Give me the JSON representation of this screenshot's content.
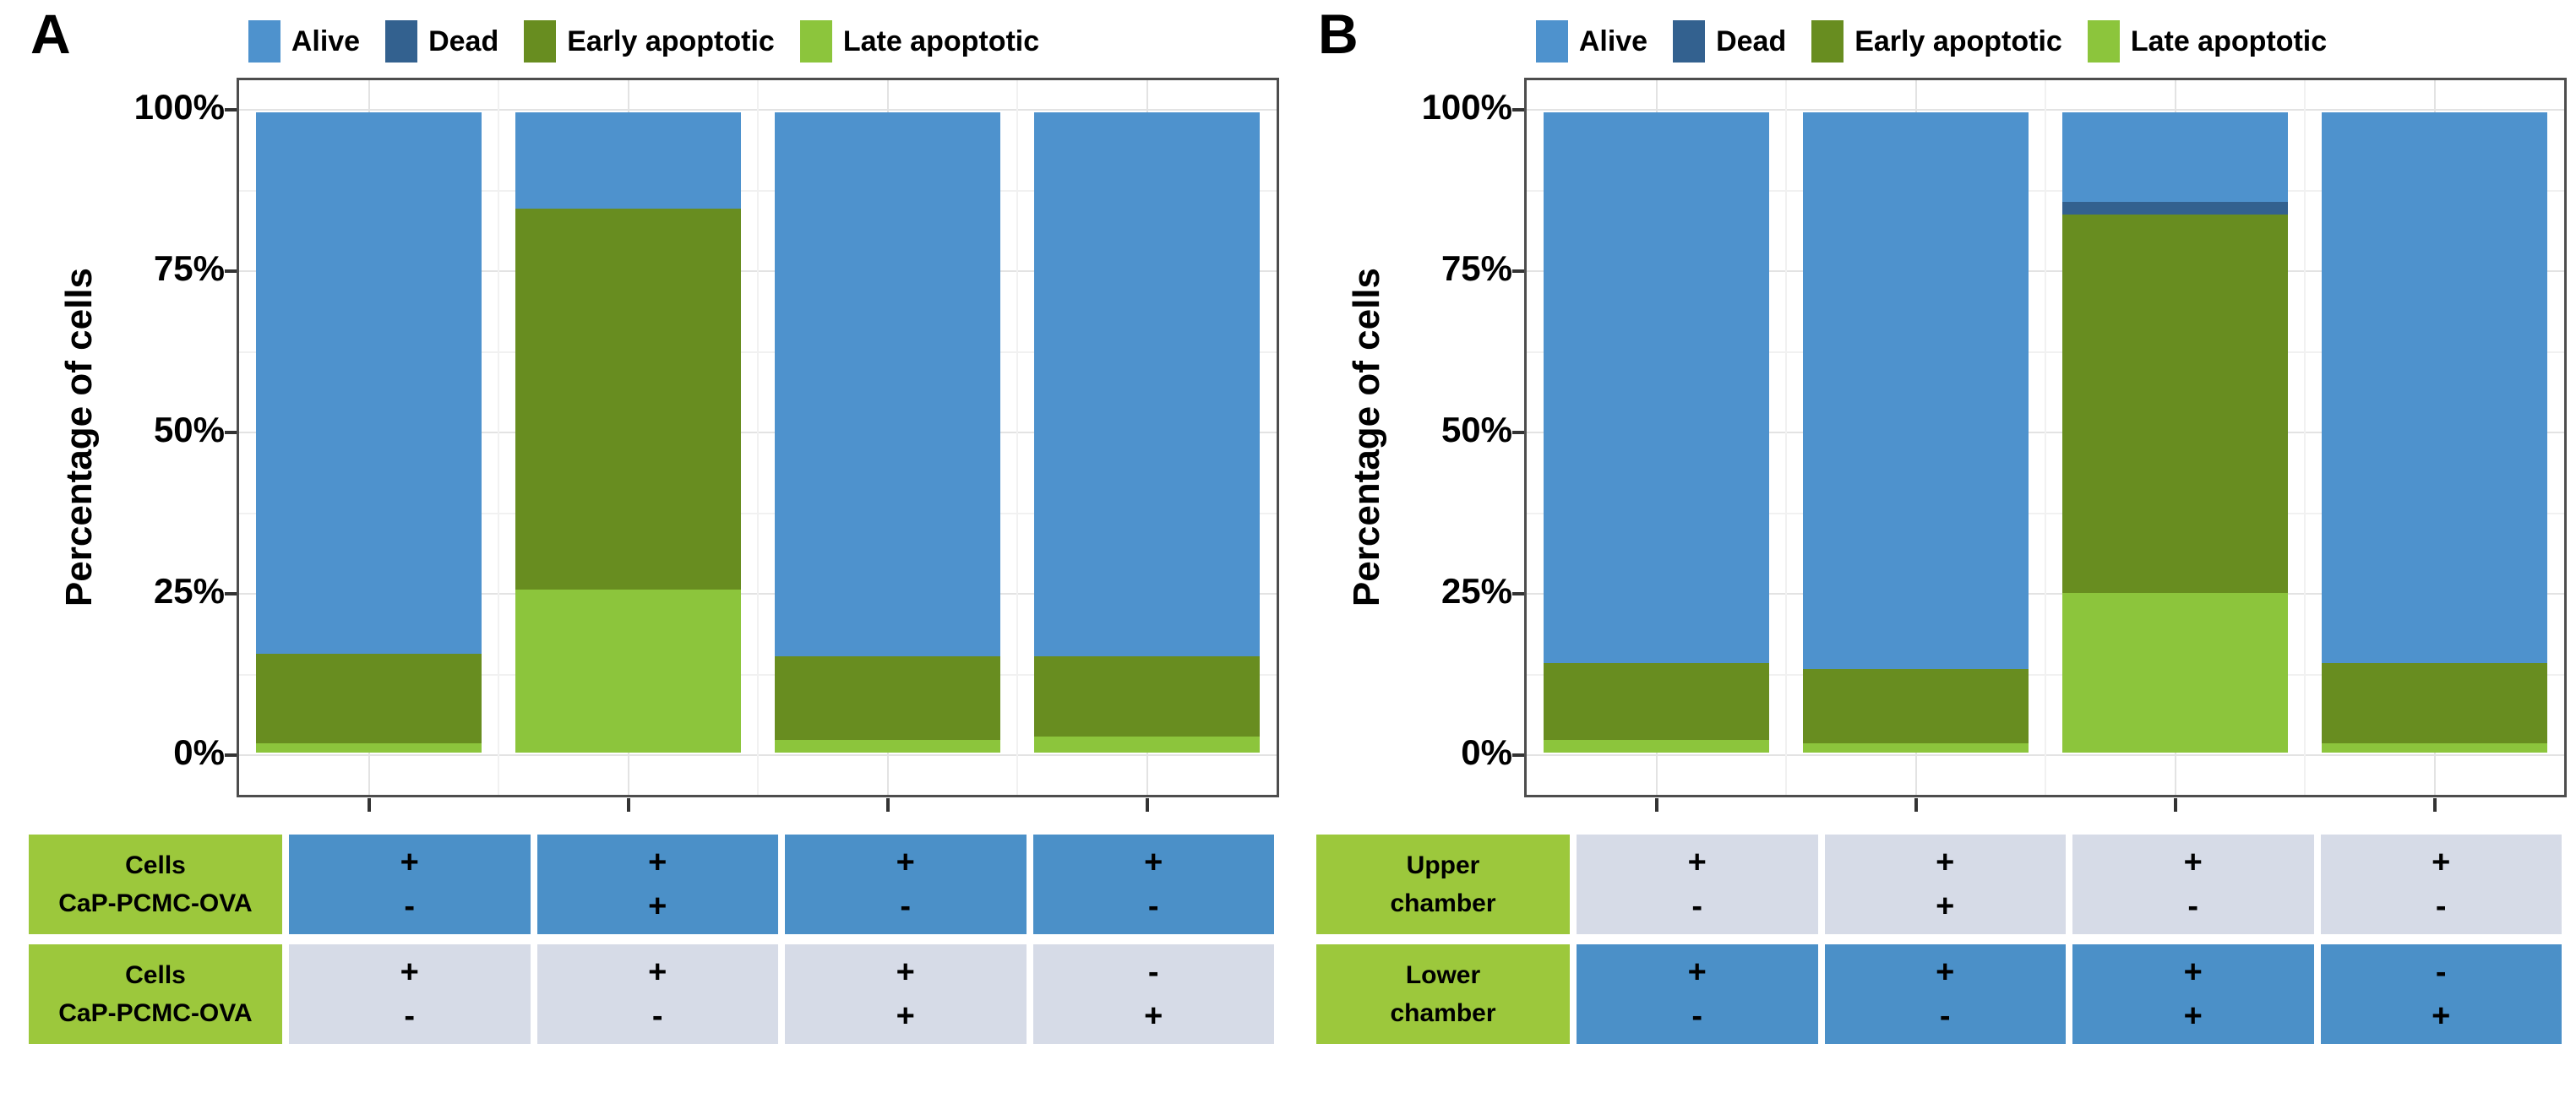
{
  "figure": {
    "background": "#ffffff"
  },
  "colors": {
    "alive": "#4e92cd",
    "dead": "#33618f",
    "early_apoptotic": "#688d20",
    "late_apoptotic": "#8cc53c",
    "table_green": "#9cc83c",
    "table_blue": "#4b90c8",
    "table_gray": "#d6dbe7",
    "plot_border": "#4d4d4d",
    "grid_major": "#e3e3e3",
    "grid_minor": "#f1f1f1",
    "tick": "#333333"
  },
  "legend": {
    "items": [
      {
        "label": "Alive",
        "color_key": "alive"
      },
      {
        "label": "Dead",
        "color_key": "dead"
      },
      {
        "label": "Early apoptotic",
        "color_key": "early_apoptotic"
      },
      {
        "label": "Late apoptotic",
        "color_key": "late_apoptotic"
      }
    ]
  },
  "panels": [
    {
      "label": "A",
      "ylabel": "Percentage of cells",
      "chart_data": {
        "type": "bar",
        "stacked": true,
        "categories": [
          "1",
          "2",
          "3",
          "4"
        ],
        "series": [
          {
            "name": "Late apoptotic",
            "color_key": "late_apoptotic",
            "values": [
              1.5,
              25.5,
              2,
              2.5
            ]
          },
          {
            "name": "Early apoptotic",
            "color_key": "early_apoptotic",
            "values": [
              14,
              59.5,
              13,
              12.5
            ]
          },
          {
            "name": "Dead",
            "color_key": "dead",
            "values": [
              0,
              0,
              0,
              0
            ]
          },
          {
            "name": "Alive",
            "color_key": "alive",
            "values": [
              84.5,
              15,
              85,
              85
            ]
          }
        ],
        "title": "",
        "xlabel": "",
        "ylabel": "Percentage of cells",
        "ylim": [
          0,
          100
        ],
        "ytick_values": [
          0,
          25,
          50,
          75,
          100
        ],
        "ytick_labels": [
          "0%",
          "25%",
          "50%",
          "75%",
          "100%"
        ],
        "grid": true,
        "legend_position": "top"
      },
      "table": {
        "rows": [
          {
            "header_lines": [
              "Cells",
              "CaP-PCMC-OVA"
            ],
            "cell_style": "blue",
            "cells": [
              [
                "+",
                "-"
              ],
              [
                "+",
                "+"
              ],
              [
                "+",
                "-"
              ],
              [
                "+",
                "-"
              ]
            ]
          },
          {
            "header_lines": [
              "Cells",
              "CaP-PCMC-OVA"
            ],
            "cell_style": "gray",
            "cells": [
              [
                "+",
                "-"
              ],
              [
                "+",
                "-"
              ],
              [
                "+",
                "+"
              ],
              [
                "-",
                "+"
              ]
            ]
          }
        ]
      }
    },
    {
      "label": "B",
      "ylabel": "Percentage of cells",
      "chart_data": {
        "type": "bar",
        "stacked": true,
        "categories": [
          "1",
          "2",
          "3",
          "4"
        ],
        "series": [
          {
            "name": "Late apoptotic",
            "color_key": "late_apoptotic",
            "values": [
              2,
              1.5,
              25,
              1.5
            ]
          },
          {
            "name": "Early apoptotic",
            "color_key": "early_apoptotic",
            "values": [
              12,
              11.5,
              59,
              12.5
            ]
          },
          {
            "name": "Dead",
            "color_key": "dead",
            "values": [
              0,
              0,
              2,
              0
            ]
          },
          {
            "name": "Alive",
            "color_key": "alive",
            "values": [
              86,
              87,
              14,
              86
            ]
          }
        ],
        "title": "",
        "xlabel": "",
        "ylabel": "Percentage of cells",
        "ylim": [
          0,
          100
        ],
        "ytick_values": [
          0,
          25,
          50,
          75,
          100
        ],
        "ytick_labels": [
          "0%",
          "25%",
          "50%",
          "75%",
          "100%"
        ],
        "grid": true,
        "legend_position": "top"
      },
      "table": {
        "rows": [
          {
            "header_lines": [
              "Upper",
              "chamber"
            ],
            "cell_style": "gray",
            "cells": [
              [
                "+",
                "-"
              ],
              [
                "+",
                "+"
              ],
              [
                "+",
                "-"
              ],
              [
                "+",
                "-"
              ]
            ]
          },
          {
            "header_lines": [
              "Lower",
              "chamber"
            ],
            "cell_style": "blue",
            "cells": [
              [
                "+",
                "-"
              ],
              [
                "+",
                "-"
              ],
              [
                "+",
                "+"
              ],
              [
                "-",
                "+"
              ]
            ]
          }
        ]
      }
    }
  ]
}
